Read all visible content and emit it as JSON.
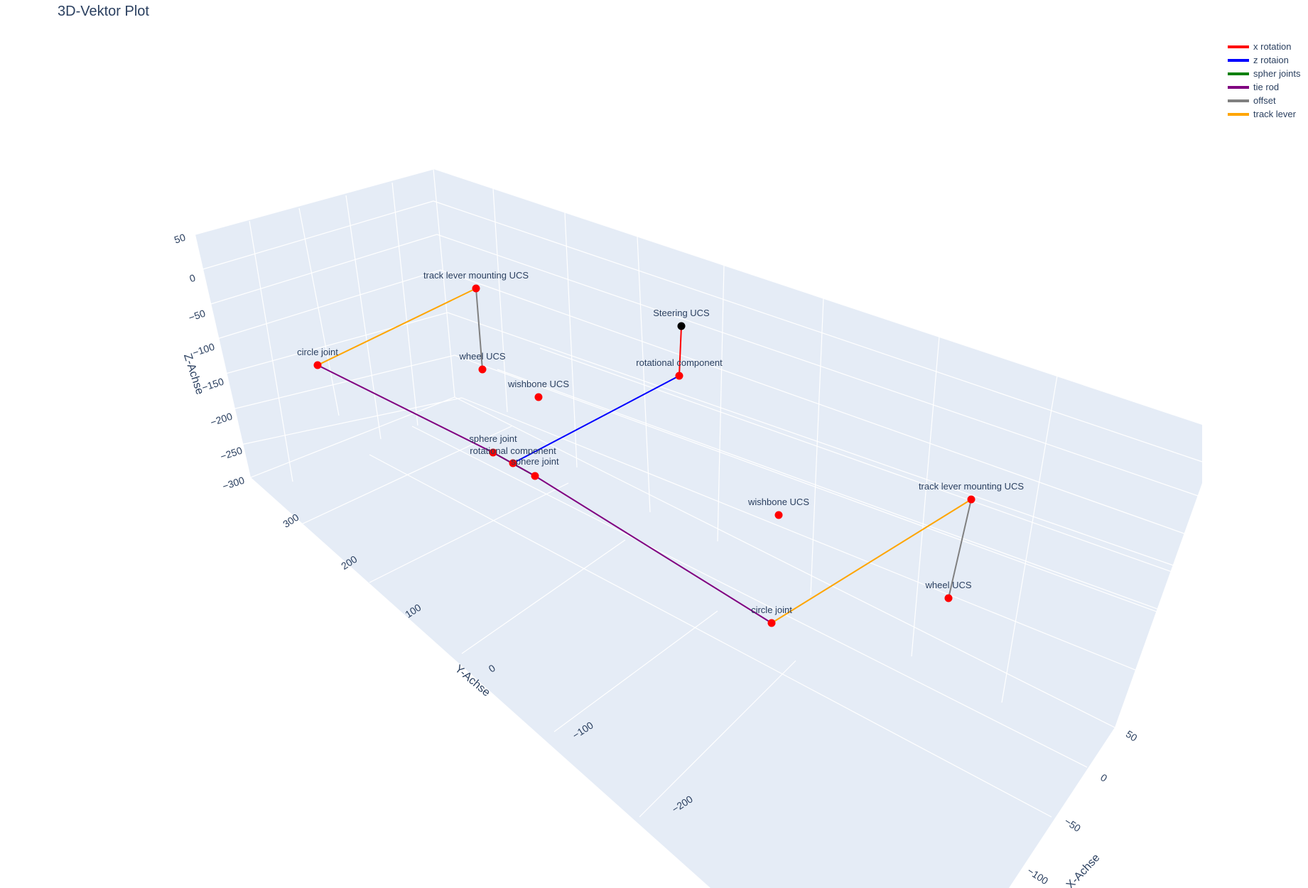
{
  "title": "3D-Vektor Plot",
  "chart_data": {
    "type": "scatter3d",
    "axes": {
      "x": {
        "title": "X-Achse",
        "ticks": [
          "50",
          "0",
          "−50",
          "−100"
        ]
      },
      "y": {
        "title": "Y-Achse",
        "ticks": [
          "300",
          "200",
          "100",
          "0",
          "−100",
          "−200"
        ]
      },
      "z": {
        "title": "Z-Achse",
        "ticks": [
          "50",
          "0",
          "−50",
          "−100",
          "−150",
          "−200",
          "−250",
          "−300"
        ]
      }
    },
    "series": [
      {
        "name": "x rotation",
        "color": "#ff0000",
        "points": [
          "steering_ucs",
          "rot_comp_top"
        ]
      },
      {
        "name": "z rotaion",
        "color": "#0000ff",
        "points": [
          "rot_comp_top",
          "rot_comp_center"
        ]
      },
      {
        "name": "spher joints",
        "color": "#008000",
        "points": [
          "sphere_left",
          "sphere_right"
        ]
      },
      {
        "name": "tie rod",
        "color": "#800080",
        "points": [
          "circle_left",
          "sphere_left",
          "sphere_right",
          "circle_right"
        ]
      },
      {
        "name": "offset",
        "color": "#808080",
        "points": [
          "tlm_left",
          "wheel_left"
        ]
      },
      {
        "name": "offset",
        "color": "#808080",
        "points": [
          "tlm_right",
          "wheel_right"
        ],
        "showlegend": false
      },
      {
        "name": "track lever",
        "color": "#ffa500",
        "points": [
          "tlm_left",
          "circle_left"
        ],
        "showlegend": false
      },
      {
        "name": "track lever",
        "color": "#ffa500",
        "points": [
          "circle_right",
          "tlm_right"
        ]
      }
    ],
    "markers": [
      {
        "id": "steering_ucs",
        "label": "Steering UCS",
        "color": "#000000"
      },
      {
        "id": "rot_comp_top",
        "label": "rotational component",
        "color": "#ff0000"
      },
      {
        "id": "rot_comp_center",
        "label": "rotational component",
        "color": "#ff0000"
      },
      {
        "id": "tlm_left",
        "label": "track lever mounting UCS",
        "color": "#ff0000"
      },
      {
        "id": "circle_left",
        "label": "circle joint",
        "color": "#ff0000"
      },
      {
        "id": "wheel_left",
        "label": "wheel UCS",
        "color": "#ff0000"
      },
      {
        "id": "wishbone_left",
        "label": "wishbone UCS",
        "color": "#ff0000"
      },
      {
        "id": "sphere_left",
        "label": "sphere joint",
        "color": "#ff0000"
      },
      {
        "id": "sphere_right",
        "label": "sphere joint",
        "color": "#ff0000"
      },
      {
        "id": "wishbone_right",
        "label": "wishbone UCS",
        "color": "#ff0000"
      },
      {
        "id": "tlm_right",
        "label": "track lever mounting UCS",
        "color": "#ff0000"
      },
      {
        "id": "wheel_right",
        "label": "wheel UCS",
        "color": "#ff0000"
      },
      {
        "id": "circle_right",
        "label": "circle joint",
        "color": "#ff0000"
      }
    ],
    "legend": [
      "x rotation",
      "z rotaion",
      "spher joints",
      "tie rod",
      "offset",
      "track lever"
    ],
    "legend_position": "top-right",
    "scene_background": "#e5ecf6",
    "grid_color": "#ffffff"
  }
}
